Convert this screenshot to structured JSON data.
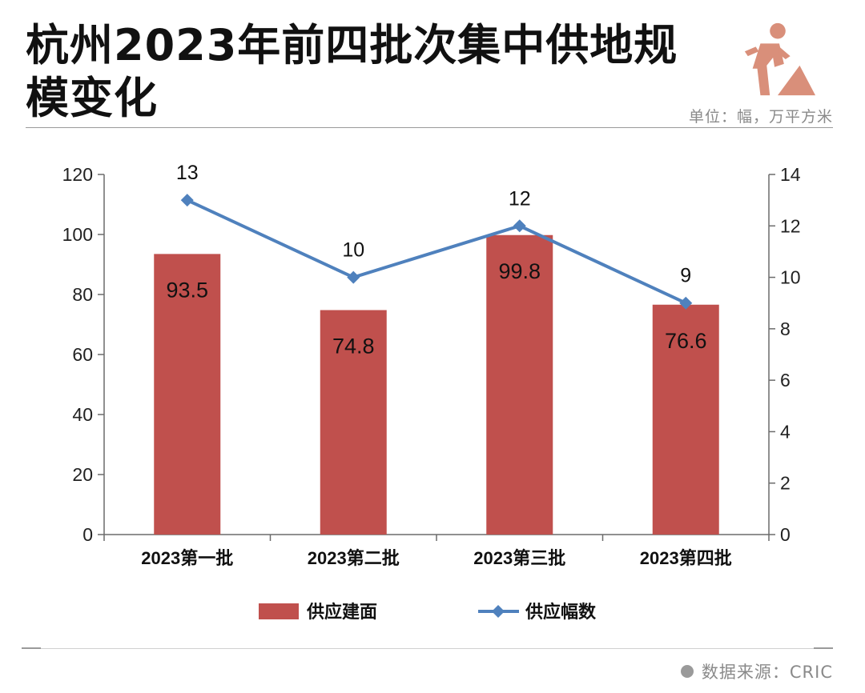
{
  "header": {
    "title": "杭州2023年前四批次集中供地规模变化",
    "unit": "单位：幅，万平方米",
    "icon": "construction-worker-icon",
    "icon_color": "#d98f7a"
  },
  "footer": {
    "source": "数据来源：CRIC"
  },
  "chart_data": {
    "type": "bar",
    "categories": [
      "2023第一批",
      "2023第二批",
      "2023第三批",
      "2023第四批"
    ],
    "series": [
      {
        "name": "供应建面",
        "type": "bar",
        "axis": "left",
        "values": [
          93.5,
          74.8,
          99.8,
          76.6
        ],
        "color": "#c0504d",
        "labels": [
          "93.5",
          "74.8",
          "99.8",
          "76.6"
        ]
      },
      {
        "name": "供应幅数",
        "type": "line",
        "axis": "right",
        "values": [
          13,
          10,
          12,
          9
        ],
        "color": "#4f81bd",
        "marker": "diamond",
        "labels": [
          "13",
          "10",
          "12",
          "9"
        ]
      }
    ],
    "y_left": {
      "min": 0,
      "max": 120,
      "ticks": [
        "0",
        "20",
        "40",
        "60",
        "80",
        "100",
        "120"
      ]
    },
    "y_right": {
      "min": 0,
      "max": 14,
      "ticks": [
        "0",
        "2",
        "4",
        "6",
        "8",
        "10",
        "12",
        "14"
      ]
    },
    "grid": false,
    "legend_position": "bottom"
  }
}
